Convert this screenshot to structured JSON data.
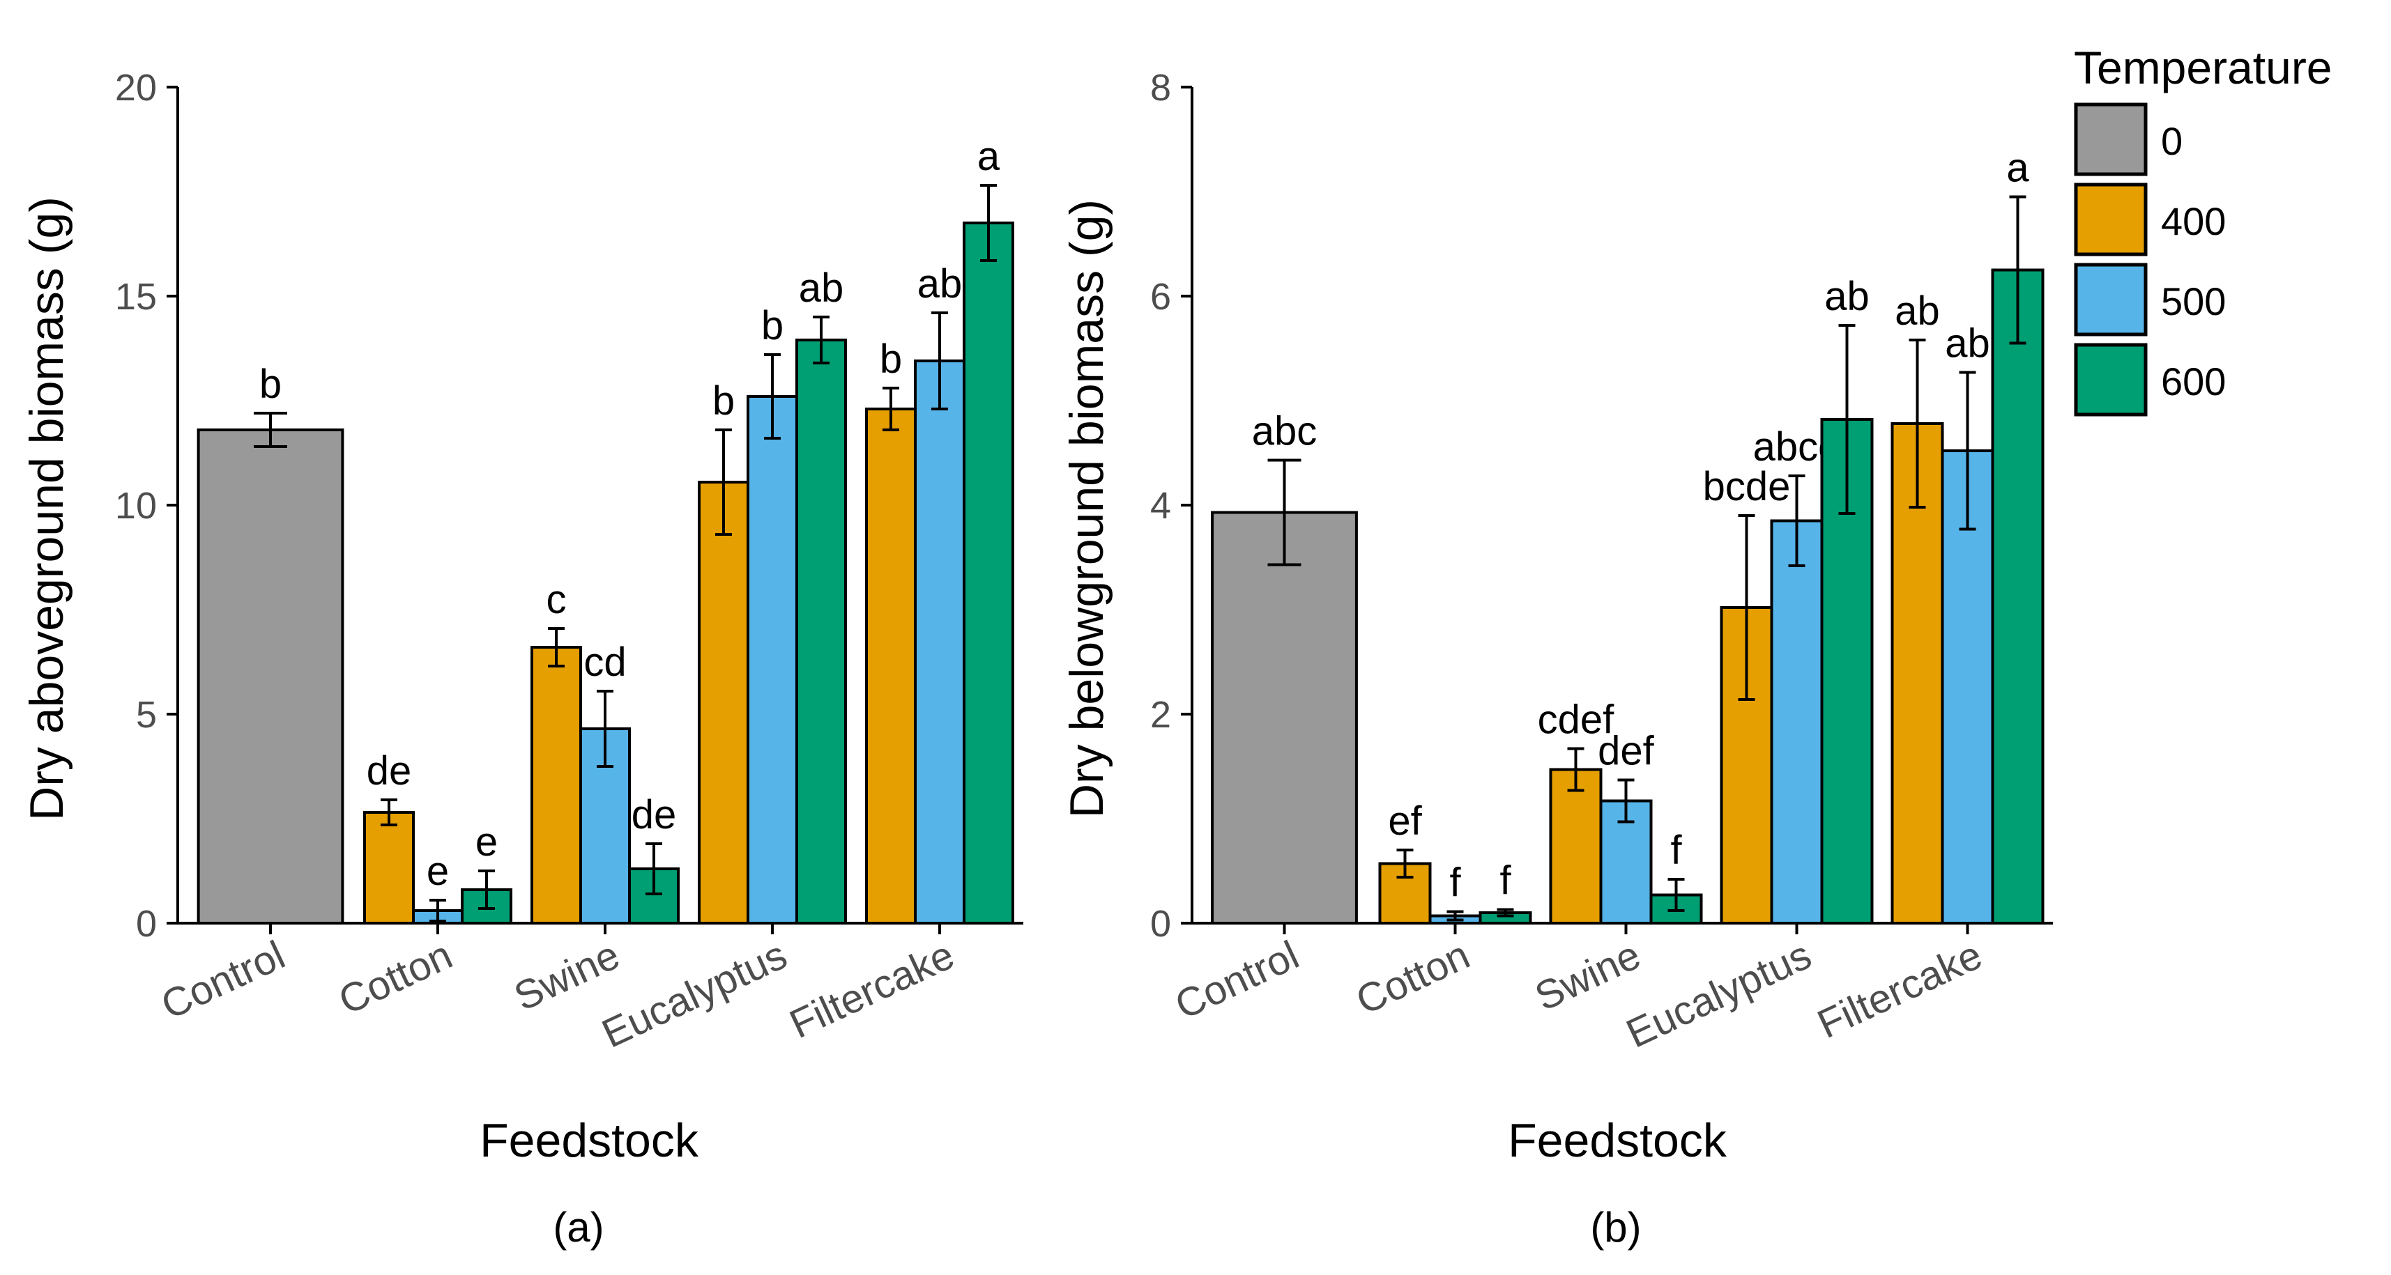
{
  "chart_data": [
    {
      "type": "bar",
      "panel_label": "(a)",
      "xlabel": "Feedstock",
      "ylabel": "Dry aboveground biomass (g)",
      "ylim": [
        0,
        20
      ],
      "yticks": [
        "0",
        "5",
        "10",
        "15",
        "20"
      ],
      "groups": [
        {
          "category": "Control",
          "bars": [
            {
              "temperature": "0",
              "value": 11.8,
              "error": 0.4,
              "letter": "b"
            }
          ]
        },
        {
          "category": "Cotton",
          "bars": [
            {
              "temperature": "400",
              "value": 2.65,
              "error": 0.3,
              "letter": "de"
            },
            {
              "temperature": "500",
              "value": 0.3,
              "error": 0.25,
              "letter": "e"
            },
            {
              "temperature": "600",
              "value": 0.8,
              "error": 0.45,
              "letter": "e"
            }
          ]
        },
        {
          "category": "Swine",
          "bars": [
            {
              "temperature": "400",
              "value": 6.6,
              "error": 0.45,
              "letter": "c"
            },
            {
              "temperature": "500",
              "value": 4.65,
              "error": 0.9,
              "letter": "cd"
            },
            {
              "temperature": "600",
              "value": 1.3,
              "error": 0.6,
              "letter": "de"
            }
          ]
        },
        {
          "category": "Eucalyptus",
          "bars": [
            {
              "temperature": "400",
              "value": 10.55,
              "error": 1.25,
              "letter": "b"
            },
            {
              "temperature": "500",
              "value": 12.6,
              "error": 1.0,
              "letter": "b"
            },
            {
              "temperature": "600",
              "value": 13.95,
              "error": 0.55,
              "letter": "ab"
            }
          ]
        },
        {
          "category": "Filtercake",
          "bars": [
            {
              "temperature": "400",
              "value": 12.3,
              "error": 0.5,
              "letter": "b"
            },
            {
              "temperature": "500",
              "value": 13.45,
              "error": 1.15,
              "letter": "ab"
            },
            {
              "temperature": "600",
              "value": 16.75,
              "error": 0.9,
              "letter": "a"
            }
          ]
        }
      ]
    },
    {
      "type": "bar",
      "panel_label": "(b)",
      "xlabel": "Feedstock",
      "ylabel": "Dry belowground biomass (g)",
      "ylim": [
        0,
        8
      ],
      "yticks": [
        "0",
        "2",
        "4",
        "6",
        "8"
      ],
      "groups": [
        {
          "category": "Control",
          "bars": [
            {
              "temperature": "0",
              "value": 3.93,
              "error": 0.5,
              "letter": "abc"
            }
          ]
        },
        {
          "category": "Cotton",
          "bars": [
            {
              "temperature": "400",
              "value": 0.57,
              "error": 0.13,
              "letter": "ef"
            },
            {
              "temperature": "500",
              "value": 0.07,
              "error": 0.04,
              "letter": "f"
            },
            {
              "temperature": "600",
              "value": 0.1,
              "error": 0.03,
              "letter": "f"
            }
          ]
        },
        {
          "category": "Swine",
          "bars": [
            {
              "temperature": "400",
              "value": 1.47,
              "error": 0.2,
              "letter": "cdef"
            },
            {
              "temperature": "500",
              "value": 1.17,
              "error": 0.2,
              "letter": "def"
            },
            {
              "temperature": "600",
              "value": 0.27,
              "error": 0.15,
              "letter": "f"
            }
          ]
        },
        {
          "category": "Eucalyptus",
          "bars": [
            {
              "temperature": "400",
              "value": 3.02,
              "error": 0.88,
              "letter": "bcde"
            },
            {
              "temperature": "500",
              "value": 3.85,
              "error": 0.43,
              "letter": "abcd"
            },
            {
              "temperature": "600",
              "value": 4.82,
              "error": 0.9,
              "letter": "ab"
            }
          ]
        },
        {
          "category": "Filtercake",
          "bars": [
            {
              "temperature": "400",
              "value": 4.78,
              "error": 0.8,
              "letter": "ab"
            },
            {
              "temperature": "500",
              "value": 4.52,
              "error": 0.75,
              "letter": "ab"
            },
            {
              "temperature": "600",
              "value": 6.25,
              "error": 0.7,
              "letter": "a"
            }
          ]
        }
      ]
    }
  ],
  "legend": {
    "title": "Temperature",
    "entries": [
      {
        "label": "0",
        "color": "#999999"
      },
      {
        "label": "400",
        "color": "#E69F00"
      },
      {
        "label": "500",
        "color": "#56B4E9"
      },
      {
        "label": "600",
        "color": "#009E73"
      }
    ]
  }
}
